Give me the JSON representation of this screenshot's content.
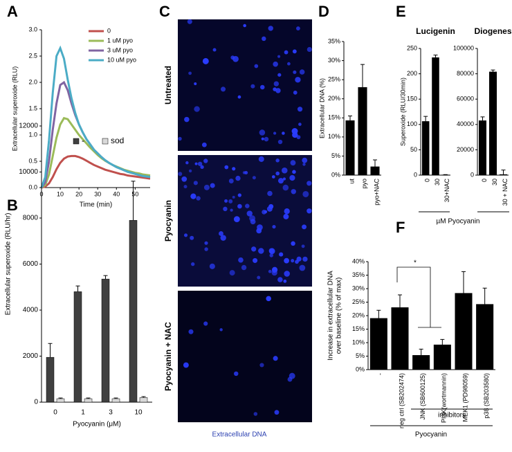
{
  "panel_labels": [
    "A",
    "B",
    "C",
    "D",
    "E",
    "F"
  ],
  "micrographs": {
    "rows": [
      "Untreated",
      "Pyocyanin",
      "Pyocyanin + NAC"
    ],
    "caption": "Extracellular DNA"
  },
  "panel_e_x_label": "µM Pyocyanin",
  "chart_data": [
    {
      "type": "line",
      "y_label": "Extracellular superoxide (RLU)",
      "x_label": "Time (min)",
      "x": [
        0,
        2,
        4,
        6,
        8,
        10,
        12,
        14,
        16,
        18,
        20,
        22,
        24,
        26,
        28,
        30,
        32,
        34,
        36,
        38,
        40,
        42,
        44,
        46,
        48,
        50,
        52,
        54,
        56,
        58
      ],
      "xlim": [
        0,
        58
      ],
      "xticks": [
        0,
        10,
        20,
        30,
        40,
        50
      ],
      "ylim": [
        0,
        3
      ],
      "yticks": [
        {
          "value": 0,
          "label": "0.0"
        },
        0.5,
        {
          "value": 1,
          "label": "1.0"
        },
        1.5,
        {
          "value": 2,
          "label": "2.0"
        },
        2.5,
        {
          "value": 3,
          "label": "3.0"
        }
      ],
      "series": [
        {
          "name": "0",
          "color": "#c0504d",
          "values": [
            0,
            0.02,
            0.08,
            0.2,
            0.35,
            0.47,
            0.55,
            0.59,
            0.6,
            0.6,
            0.58,
            0.55,
            0.51,
            0.47,
            0.43,
            0.4,
            0.37,
            0.34,
            0.32,
            0.3,
            0.28,
            0.26,
            0.25,
            0.23,
            0.22,
            0.21,
            0.2,
            0.19,
            0.18,
            0.17
          ]
        },
        {
          "name": "1 uM pyo",
          "color": "#9bbb59",
          "values": [
            0,
            0.05,
            0.25,
            0.6,
            0.95,
            1.2,
            1.32,
            1.3,
            1.2,
            1.1,
            1.0,
            0.92,
            0.84,
            0.76,
            0.69,
            0.62,
            0.56,
            0.51,
            0.47,
            0.43,
            0.4,
            0.37,
            0.34,
            0.32,
            0.3,
            0.28,
            0.27,
            0.25,
            0.24,
            0.23
          ]
        },
        {
          "name": "3 uM pyo",
          "color": "#8064a2",
          "values": [
            0,
            0.1,
            0.5,
            1.1,
            1.6,
            1.95,
            2.0,
            1.85,
            1.6,
            1.38,
            1.2,
            1.05,
            0.92,
            0.82,
            0.72,
            0.65,
            0.58,
            0.52,
            0.47,
            0.43,
            0.39,
            0.36,
            0.33,
            0.3,
            0.28,
            0.26,
            0.24,
            0.22,
            0.21,
            0.2
          ]
        },
        {
          "name": "10 uM pyo",
          "color": "#4bacc6",
          "values": [
            0,
            0.2,
            0.9,
            1.8,
            2.5,
            2.65,
            2.45,
            2.05,
            1.7,
            1.42,
            1.2,
            1.05,
            0.92,
            0.82,
            0.72,
            0.65,
            0.58,
            0.52,
            0.47,
            0.43,
            0.39,
            0.36,
            0.33,
            0.3,
            0.28,
            0.26,
            0.24,
            0.22,
            0.21,
            0.2
          ]
        }
      ]
    },
    {
      "type": "bar",
      "y_label": "Extracellular superoxide (RLU/hr)",
      "x_label": "Pyocyanin (μM)",
      "categories": [
        "0",
        "1",
        "3",
        "10"
      ],
      "series": [
        {
          "name": "-",
          "color": "#404040",
          "values": [
            1950,
            4800,
            5350,
            7900
          ],
          "errors": [
            600,
            250,
            150,
            1700
          ]
        },
        {
          "name": "sod",
          "color": "#d9d9d9",
          "values": [
            150,
            150,
            150,
            200
          ],
          "errors": [
            30,
            30,
            30,
            40
          ]
        }
      ],
      "ylim": [
        0,
        12000
      ],
      "yticks": [
        0,
        2000,
        4000,
        6000,
        8000,
        10000,
        12000
      ]
    },
    {
      "type": "bar",
      "y_label": "Extracellular  DNA (%)",
      "categories": [
        "ut",
        "pyo",
        "pyo+NAC"
      ],
      "values": [
        14.3,
        23,
        2.2
      ],
      "errors": [
        1.2,
        6,
        1.8
      ],
      "color": "#000000",
      "ylim": [
        0,
        35
      ],
      "yticks": [
        {
          "value": 0,
          "label": "0%"
        },
        {
          "value": 5,
          "label": "5%"
        },
        {
          "value": 10,
          "label": "10%"
        },
        {
          "value": 15,
          "label": "15%"
        },
        {
          "value": 20,
          "label": "20%"
        },
        {
          "value": 25,
          "label": "25%"
        },
        {
          "value": 30,
          "label": "30%"
        },
        {
          "value": 35,
          "label": "35%"
        }
      ]
    },
    {
      "type": "bar",
      "title": "Lucigenin",
      "y_label": "Superoxide (RLU/30min)",
      "categories": [
        "0",
        "30",
        "30+NAC"
      ],
      "values": [
        106,
        232,
        0.5
      ],
      "errors": [
        10,
        5,
        0.5
      ],
      "color": "#000000",
      "ylim": [
        0,
        250
      ],
      "yticks": [
        0,
        50,
        100,
        150,
        200,
        250
      ]
    },
    {
      "type": "bar",
      "title": "Diogenes",
      "categories": [
        "0",
        "30",
        "30 + NAC"
      ],
      "values": [
        43000,
        81500,
        500
      ],
      "errors": [
        3000,
        1500,
        3500
      ],
      "color": "#000000",
      "ylim": [
        0,
        100000
      ],
      "yticks": [
        0,
        20000,
        40000,
        60000,
        80000,
        100000
      ]
    },
    {
      "type": "bar",
      "y_label": [
        "Increase in extracellular  DNA",
        "over baseline (% of max)"
      ],
      "categories": [
        "-",
        "neg ctrl (SB202474)",
        "JNK (SB600125)",
        "PI3K(wortmannin)",
        "MEK1 (PD98059)",
        "p38 (SB203580)"
      ],
      "values": [
        19,
        23,
        5.3,
        9.2,
        28.3,
        24.2
      ],
      "errors": [
        3,
        4.7,
        2.3,
        2,
        8,
        6
      ],
      "color": "#000000",
      "ylim": [
        0,
        40
      ],
      "yticks": [
        {
          "value": 0,
          "label": "0%"
        },
        {
          "value": 5,
          "label": "5%"
        },
        {
          "value": 10,
          "label": "10%"
        },
        {
          "value": 15,
          "label": "15%"
        },
        {
          "value": 20,
          "label": "20%"
        },
        {
          "value": 25,
          "label": "25%"
        },
        {
          "value": 30,
          "label": "30%"
        },
        {
          "value": 35,
          "label": "35%"
        },
        {
          "value": 40,
          "label": "40%"
        }
      ],
      "significance": "*",
      "group_label": "inhibitors",
      "treatment_label": "Pyocyanin"
    }
  ]
}
